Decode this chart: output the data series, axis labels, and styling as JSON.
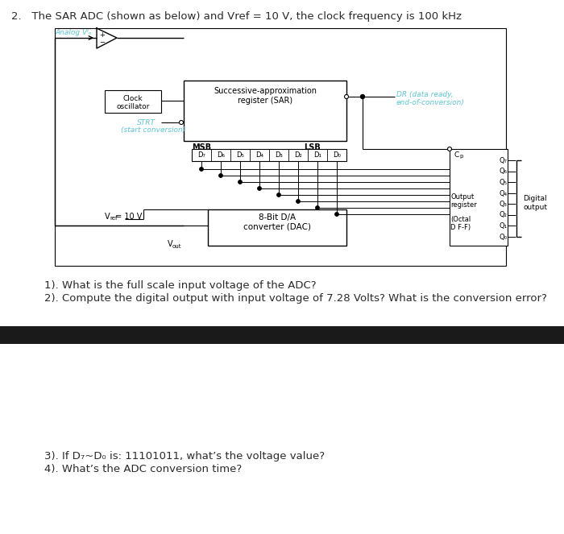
{
  "title": "2.   The SAR ADC (shown as below) and Vref = 10 V, the clock frequency is 100 kHz",
  "question1": "1). What is the full scale input voltage of the ADC?",
  "question2": "2). Compute the digital output with input voltage of 7.28 Volts? What is the conversion error?",
  "question3": "3). If D₇~D₀ is: 11101011, what’s the voltage value?",
  "question4": "4). What’s the ADC conversion time?",
  "analog_label": "Analog Vᴵₙ",
  "strt_label": "STRT",
  "strt_label2": "(start conversion)",
  "clock_label": "Clock\noscillator",
  "sar_label": "Successive-approximation\nregister (SAR)",
  "dr_label": "DR (data ready,\nend-of-conversion)",
  "msb_label": "MSB",
  "lsb_label": "LSB",
  "dac_label": "8-Bit D/A\nconverter (DAC)",
  "vref_label": "V",
  "vref_sub": "ref",
  "vref_val": " = 10 V",
  "vout_label": "V",
  "vout_sub": "out",
  "output_reg_label1": "Output",
  "output_reg_label2": "register",
  "output_reg_label3": "(Octal",
  "output_reg_label4": "D F-F)",
  "digital_output_label": "Digital\noutput",
  "cp_label": "C",
  "cp_sub": "p",
  "bg_color": "#ffffff",
  "text_color": "#2a2a2a",
  "cyan_color": "#5bc8d4",
  "black": "#000000",
  "separator_color": "#1a1a1a",
  "fig_width": 7.0,
  "fig_height": 6.63
}
